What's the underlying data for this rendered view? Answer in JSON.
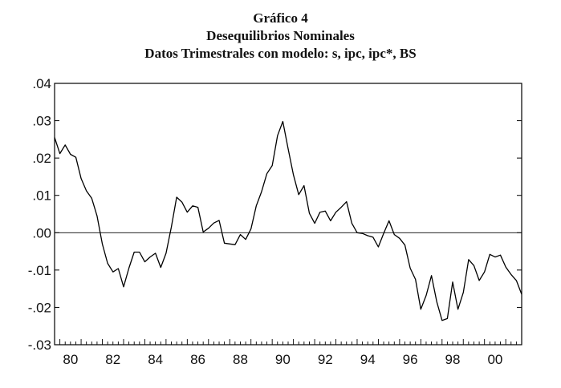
{
  "header": {
    "title": "Gráfico 4",
    "subtitle": "Desequilibrios Nominales",
    "subtitle2": "Datos Trimestrales con modelo: s, ipc, ipc*, BS"
  },
  "chart_data": {
    "type": "line",
    "title": "Gráfico 4",
    "subtitle": "Desequilibrios Nominales / Datos Trimestrales con modelo: s, ipc, ipc*, BS",
    "xlabel": "",
    "ylabel": "",
    "ylim": [
      -0.03,
      0.04
    ],
    "yticks": [
      0.04,
      0.03,
      0.02,
      0.01,
      0.0,
      -0.01,
      -0.02,
      -0.03
    ],
    "ytick_labels": [
      ".04",
      ".03",
      ".02",
      ".01",
      ".00",
      "-.01",
      "-.02",
      "-.03"
    ],
    "xtick_years": [
      1980,
      1982,
      1984,
      1986,
      1988,
      1990,
      1992,
      1994,
      1996,
      1998,
      2000
    ],
    "xtick_labels": [
      "80",
      "82",
      "84",
      "86",
      "88",
      "90",
      "92",
      "94",
      "96",
      "98",
      "00"
    ],
    "xlim": [
      "1979Q4",
      "2001Q4"
    ],
    "zero_line": true,
    "grid": false,
    "series": [
      {
        "frequency": "quarterly",
        "start": "1979Q4",
        "color": "#000000",
        "values": [
          0.0255,
          0.0212,
          0.0235,
          0.021,
          0.0202,
          0.0145,
          0.0112,
          0.0092,
          0.0045,
          -0.003,
          -0.0082,
          -0.0105,
          -0.0096,
          -0.0145,
          -0.0095,
          -0.0052,
          -0.0052,
          -0.0078,
          -0.0065,
          -0.0055,
          -0.0093,
          -0.0055,
          0.0015,
          0.0095,
          0.0082,
          0.0055,
          0.0072,
          0.0068,
          0.0002,
          0.0012,
          0.0026,
          0.0033,
          -0.0028,
          -0.003,
          -0.0032,
          -0.0005,
          -0.0018,
          0.001,
          0.0072,
          0.011,
          0.0158,
          0.018,
          0.026,
          0.0298,
          0.0225,
          0.0155,
          0.0102,
          0.0126,
          0.0052,
          0.0025,
          0.0055,
          0.0058,
          0.0032,
          0.0055,
          0.0068,
          0.0083,
          0.0025,
          0.0,
          -0.0002,
          -0.0008,
          -0.0012,
          -0.0038,
          -0.0002,
          0.0032,
          -0.0005,
          -0.0015,
          -0.0033,
          -0.0095,
          -0.0125,
          -0.0205,
          -0.0168,
          -0.0115,
          -0.0185,
          -0.0235,
          -0.023,
          -0.0132,
          -0.0205,
          -0.016,
          -0.0072,
          -0.0088,
          -0.0128,
          -0.0105,
          -0.0058,
          -0.0065,
          -0.006,
          -0.0092,
          -0.0112,
          -0.0128,
          -0.0165
        ]
      }
    ]
  }
}
